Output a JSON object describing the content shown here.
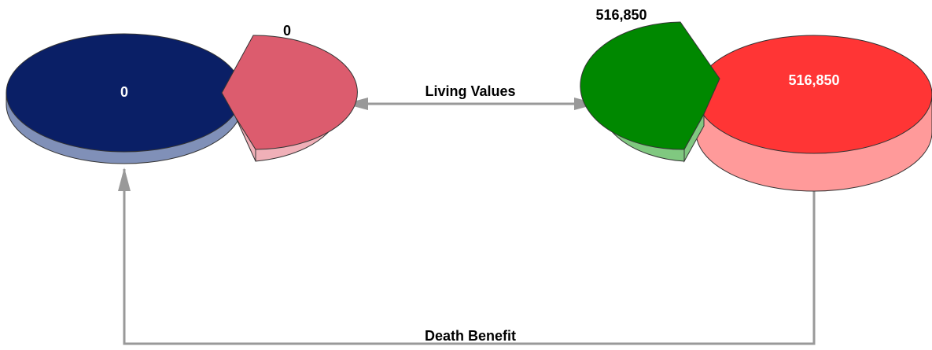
{
  "left": {
    "main_label": "0",
    "wedge_label": "0"
  },
  "right": {
    "main_label": "516,850",
    "wedge_label": "516,850"
  },
  "connectors": {
    "living": "Living Values",
    "death": "Death Benefit"
  }
}
